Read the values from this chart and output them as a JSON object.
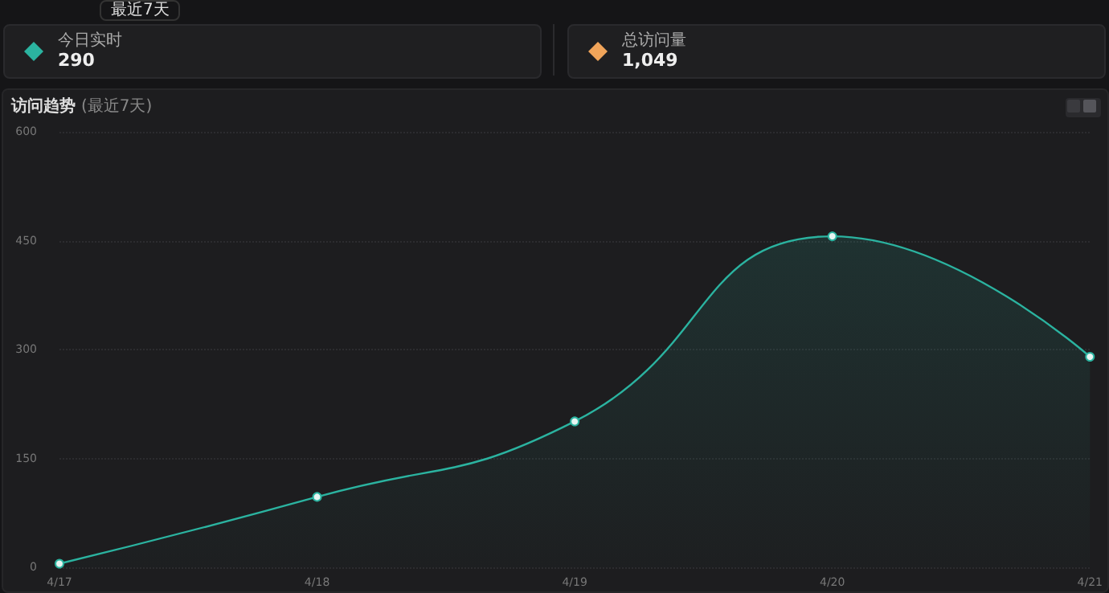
{
  "chart_data": {
    "type": "area",
    "title": "访问趋势",
    "subtitle": "(最近7天)",
    "annotations": [
      "最近7天",
      "今日实时",
      "290",
      "总访问量",
      "1,049"
    ],
    "categories": [
      "4/17",
      "4/18",
      "4/19",
      "4/20",
      "4/21"
    ],
    "series": [
      {
        "color": "#2bb3a0",
        "values": [
          5,
          97,
          201,
          456,
          290
        ]
      }
    ],
    "ylim": [
      0,
      600
    ],
    "yticks": [
      0,
      150,
      300,
      450,
      600
    ],
    "grid": "y",
    "marker": "circle"
  }
}
